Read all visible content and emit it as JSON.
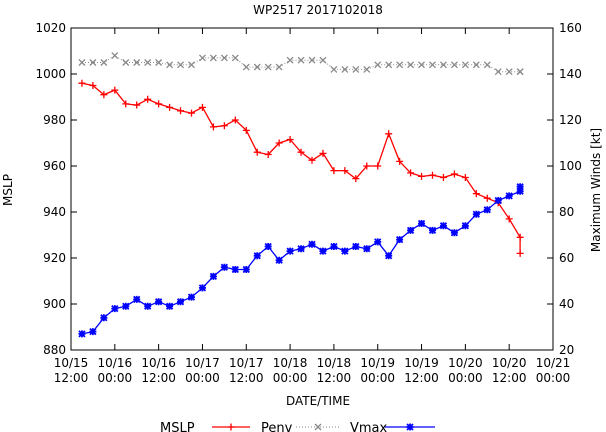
{
  "chart_data": {
    "type": "line",
    "title": "WP2517 2017102018",
    "xlabel": "DATE/TIME",
    "ylabel": "MSLP",
    "y2label": "Maximum Winds [kt]",
    "x_tick_labels": [
      {
        "top": "10/15",
        "bottom": "12:00"
      },
      {
        "top": "10/16",
        "bottom": "00:00"
      },
      {
        "top": "10/16",
        "bottom": "12:00"
      },
      {
        "top": "10/17",
        "bottom": "00:00"
      },
      {
        "top": "10/17",
        "bottom": "12:00"
      },
      {
        "top": "10/18",
        "bottom": "00:00"
      },
      {
        "top": "10/18",
        "bottom": "12:00"
      },
      {
        "top": "10/19",
        "bottom": "00:00"
      },
      {
        "top": "10/19",
        "bottom": "12:00"
      },
      {
        "top": "10/20",
        "bottom": "00:00"
      },
      {
        "top": "10/20",
        "bottom": "12:00"
      },
      {
        "top": "10/21",
        "bottom": "00:00"
      }
    ],
    "x_range_hours": [
      0,
      132
    ],
    "ylim": [
      880,
      1020
    ],
    "y_ticks": [
      880,
      900,
      920,
      940,
      960,
      980,
      1000,
      1020
    ],
    "y2lim": [
      20,
      160
    ],
    "y2_ticks": [
      20,
      40,
      60,
      80,
      100,
      120,
      140,
      160
    ],
    "legend_position": "bottom",
    "series": [
      {
        "name": "MSLP",
        "axis": "left",
        "color": "#ff0000",
        "marker": "plus",
        "line": "solid",
        "x": [
          3,
          6,
          9,
          12,
          15,
          18,
          21,
          24,
          27,
          30,
          33,
          36,
          39,
          42,
          45,
          48,
          51,
          54,
          57,
          60,
          63,
          66,
          69,
          72,
          75,
          78,
          81,
          84,
          87,
          90,
          93,
          96,
          99,
          102,
          105,
          108,
          111,
          114,
          117,
          120,
          123,
          123
        ],
        "values": [
          996,
          995,
          991,
          993,
          987,
          986.5,
          989,
          987,
          985.5,
          984,
          983,
          985.5,
          977,
          977.5,
          980,
          975.5,
          966,
          965,
          970,
          971.5,
          966,
          962.5,
          965.5,
          958,
          958,
          954.5,
          960,
          960,
          974,
          962,
          957,
          955.5,
          956,
          955,
          956.5,
          955,
          948,
          946,
          944,
          937,
          929,
          922
        ]
      },
      {
        "name": "Penv",
        "axis": "left",
        "color": "#888888",
        "marker": "x",
        "line": "dotted",
        "x": [
          3,
          6,
          9,
          12,
          15,
          18,
          21,
          24,
          27,
          30,
          33,
          36,
          39,
          42,
          45,
          48,
          51,
          54,
          57,
          60,
          63,
          66,
          69,
          72,
          75,
          78,
          81,
          84,
          87,
          90,
          93,
          96,
          99,
          102,
          105,
          108,
          111,
          114,
          117,
          120,
          123,
          123
        ],
        "values": [
          1005,
          1005,
          1005,
          1008,
          1005,
          1005,
          1005,
          1005,
          1004,
          1004,
          1004,
          1007,
          1007,
          1007,
          1007,
          1003,
          1003,
          1003,
          1003,
          1006,
          1006,
          1006,
          1006,
          1002,
          1002,
          1002,
          1002,
          1004,
          1004,
          1004,
          1004,
          1004,
          1004,
          1004,
          1004,
          1004,
          1004,
          1004,
          1001,
          1001,
          1001,
          1001
        ]
      },
      {
        "name": "Vmax",
        "axis": "right",
        "color": "#0000ff",
        "marker": "star",
        "line": "solid",
        "x": [
          3,
          6,
          9,
          12,
          15,
          18,
          21,
          24,
          27,
          30,
          33,
          36,
          39,
          42,
          45,
          48,
          51,
          54,
          57,
          60,
          63,
          66,
          69,
          72,
          75,
          78,
          81,
          84,
          87,
          90,
          93,
          96,
          99,
          102,
          105,
          108,
          111,
          114,
          117,
          120,
          123,
          123
        ],
        "values": [
          27,
          28,
          34,
          38,
          39,
          42,
          39,
          41,
          39,
          41,
          43,
          47,
          52,
          56,
          55,
          55,
          61,
          65,
          59,
          63,
          64,
          66,
          63,
          65,
          63,
          65,
          64,
          67,
          61,
          68,
          72,
          75,
          72,
          74,
          71,
          74,
          79,
          81,
          85,
          87,
          89,
          91
        ]
      }
    ]
  }
}
